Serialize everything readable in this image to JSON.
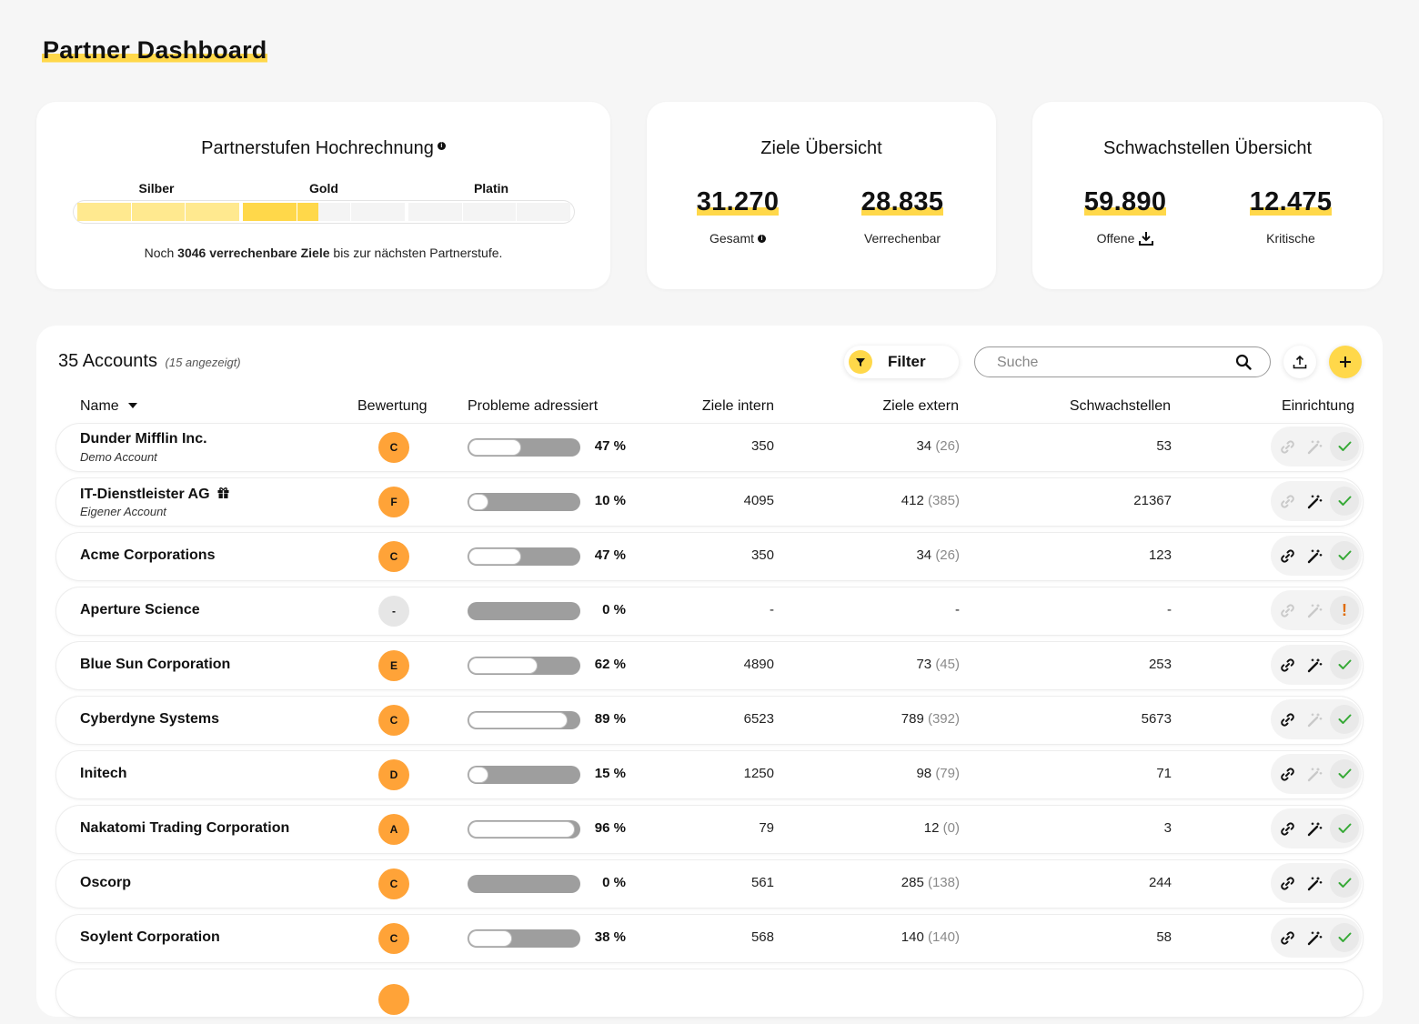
{
  "header": {
    "title": "Partner Dashboard"
  },
  "tier_card": {
    "title": "Partnerstufen Hochrechnung",
    "tiers": [
      "Silber",
      "Gold",
      "Platin"
    ],
    "filled_segments": 4.4,
    "total_segments": 9,
    "note_prefix": "Noch ",
    "note_bold": "3046 verrechenbare Ziele",
    "note_suffix": " bis zur nächsten Partnerstufe.",
    "colors": {
      "fill": "#ffd84a",
      "fill_light": "#ffe98f"
    }
  },
  "goals_card": {
    "title": "Ziele Übersicht",
    "total_value": "31.270",
    "total_label": "Gesamt",
    "billable_value": "28.835",
    "billable_label": "Verrechenbar"
  },
  "weak_card": {
    "title": "Schwachstellen Übersicht",
    "open_value": "59.890",
    "open_label": "Offene",
    "critical_value": "12.475",
    "critical_label": "Kritische"
  },
  "accounts": {
    "count_label": "35 Accounts",
    "shown_label": "(15 angezeigt)",
    "filter_label": "Filter",
    "search_placeholder": "Suche",
    "columns": {
      "name": "Name",
      "rating": "Bewertung",
      "problems": "Probleme adressiert",
      "goals_internal": "Ziele intern",
      "goals_external": "Ziele extern",
      "weaknesses": "Schwachstellen",
      "setup": "Einrichtung"
    },
    "rows": [
      {
        "name": "Dunder Mifflin Inc.",
        "sub": "Demo Account",
        "gift": false,
        "grade": "C",
        "pct": 47,
        "pct_label": "47 %",
        "intern": "350",
        "extern": "34",
        "extern_paren": "(26)",
        "schw": "53",
        "link": false,
        "wand": false,
        "status": "ok"
      },
      {
        "name": "IT-Dienstleister AG",
        "sub": "Eigener Account",
        "gift": true,
        "grade": "F",
        "pct": 10,
        "pct_label": "10 %",
        "intern": "4095",
        "extern": "412",
        "extern_paren": "(385)",
        "schw": "21367",
        "link": false,
        "wand": true,
        "status": "ok"
      },
      {
        "name": "Acme Corporations",
        "sub": "",
        "gift": false,
        "grade": "C",
        "pct": 47,
        "pct_label": "47 %",
        "intern": "350",
        "extern": "34",
        "extern_paren": "(26)",
        "schw": "123",
        "link": true,
        "wand": true,
        "status": "ok"
      },
      {
        "name": "Aperture Science",
        "sub": "",
        "gift": false,
        "grade": "-",
        "pct": 0,
        "pct_label": "0 %",
        "intern": "-",
        "extern": "-",
        "extern_paren": "",
        "schw": "-",
        "link": false,
        "wand": false,
        "status": "warn"
      },
      {
        "name": "Blue Sun Corporation",
        "sub": "",
        "gift": false,
        "grade": "E",
        "pct": 62,
        "pct_label": "62 %",
        "intern": "4890",
        "extern": "73",
        "extern_paren": "(45)",
        "schw": "253",
        "link": true,
        "wand": true,
        "status": "ok"
      },
      {
        "name": "Cyberdyne Systems",
        "sub": "",
        "gift": false,
        "grade": "C",
        "pct": 89,
        "pct_label": "89 %",
        "intern": "6523",
        "extern": "789",
        "extern_paren": "(392)",
        "schw": "5673",
        "link": true,
        "wand": false,
        "status": "ok"
      },
      {
        "name": "Initech",
        "sub": "",
        "gift": false,
        "grade": "D",
        "pct": 15,
        "pct_label": "15 %",
        "intern": "1250",
        "extern": "98",
        "extern_paren": "(79)",
        "schw": "71",
        "link": true,
        "wand": false,
        "status": "ok"
      },
      {
        "name": "Nakatomi Trading Corporation",
        "sub": "",
        "gift": false,
        "grade": "A",
        "pct": 96,
        "pct_label": "96 %",
        "intern": "79",
        "extern": "12",
        "extern_paren": "(0)",
        "schw": "3",
        "link": true,
        "wand": true,
        "status": "ok"
      },
      {
        "name": "Oscorp",
        "sub": "",
        "gift": false,
        "grade": "C",
        "pct": 0,
        "pct_label": "0 %",
        "intern": "561",
        "extern": "285",
        "extern_paren": "(138)",
        "schw": "244",
        "link": true,
        "wand": true,
        "status": "ok"
      },
      {
        "name": "Soylent Corporation",
        "sub": "",
        "gift": false,
        "grade": "C",
        "pct": 38,
        "pct_label": "38 %",
        "intern": "568",
        "extern": "140",
        "extern_paren": "(140)",
        "schw": "58",
        "link": true,
        "wand": true,
        "status": "ok"
      },
      {
        "name": "",
        "sub": "",
        "gift": false,
        "grade": "",
        "pct": 0,
        "pct_label": "",
        "intern": "",
        "extern": "",
        "extern_paren": "",
        "schw": "",
        "link": false,
        "wand": false,
        "status": "none"
      }
    ]
  }
}
